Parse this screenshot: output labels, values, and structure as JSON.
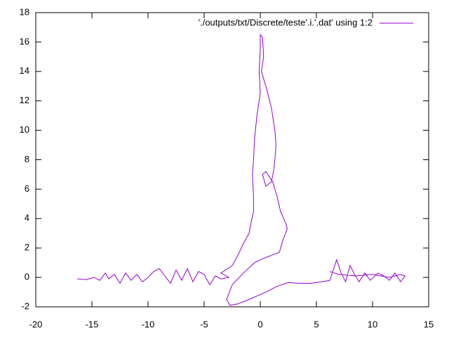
{
  "chart_data": {
    "type": "line",
    "x": [
      -16.3,
      -15.5,
      -14.8,
      -14.3,
      -13.8,
      -13.5,
      -13,
      -12.5,
      -12,
      -11.5,
      -11,
      -10.5,
      -10,
      -9.5,
      -9,
      -8.5,
      -8,
      -7.5,
      -7,
      -6.5,
      -6,
      -5.5,
      -5,
      -4.5,
      -4,
      -3.5,
      -2.8,
      -3.5,
      -2.5,
      -2,
      -1.5,
      -1,
      -0.8,
      -0.6,
      -0.6,
      -0.7,
      -0.6,
      -0.5,
      -0.3,
      0,
      -0.1,
      0,
      0,
      0.2,
      0.3,
      0.1,
      0.5,
      1,
      1.3,
      1.4,
      1.3,
      1.2,
      1,
      0.5,
      0.2,
      0.5,
      1.1,
      1.5,
      1.8,
      2.3,
      2.4,
      2,
      1.7,
      1,
      0.3,
      -0.5,
      -1.5,
      -2.5,
      -3,
      -2.7,
      -2,
      -1,
      0.5,
      1.5,
      2.5,
      3.5,
      4.5,
      5.5,
      6.2,
      6.5,
      6.8,
      7.2,
      7.6,
      8,
      8.4,
      8.8,
      9.3,
      9.8,
      10.5,
      11,
      11.5,
      12,
      12.5,
      12.9,
      12.5,
      11.5,
      10,
      8.5,
      7,
      6.2
    ],
    "series": [
      {
        "name": "'./outputs/txt/Discrete/teste'.i.'.dat' using 1:2",
        "color": "#9400d3",
        "values": [
          -0.1,
          -0.15,
          0,
          -0.2,
          0.3,
          -0.1,
          0.2,
          -0.4,
          0.3,
          -0.2,
          0.2,
          -0.3,
          0,
          0.4,
          0.6,
          0.1,
          -0.4,
          0.5,
          -0.2,
          0.6,
          -0.3,
          0.4,
          0.2,
          -0.5,
          0.1,
          -0.1,
          0,
          0.3,
          0.8,
          1.5,
          2.3,
          3,
          3.8,
          4.5,
          5.5,
          7,
          8,
          9.5,
          11,
          12.5,
          14,
          15.5,
          16.5,
          16.3,
          15,
          14,
          13,
          11.5,
          10,
          9,
          8,
          7.3,
          6.5,
          6.2,
          7,
          7.2,
          6.5,
          5.5,
          4.5,
          3.6,
          3.3,
          2.5,
          1.7,
          1.5,
          1.3,
          1,
          0.3,
          -0.5,
          -1.5,
          -1.9,
          -1.8,
          -1.5,
          -1,
          -0.6,
          -0.35,
          -0.4,
          -0.4,
          -0.3,
          -0.2,
          0.5,
          1.2,
          0.3,
          -0.3,
          0.8,
          0.2,
          -0.3,
          0.3,
          -0.2,
          0.3,
          0.1,
          -0.2,
          0.3,
          -0.3,
          0.1,
          0.2,
          0,
          0.2,
          0.1,
          0.2,
          0.4
        ]
      }
    ],
    "xlim": [
      -20,
      15
    ],
    "xticks": [
      -20,
      -15,
      -10,
      -5,
      0,
      5,
      10,
      15
    ],
    "ylim": [
      -2,
      18
    ],
    "yticks": [
      -2,
      0,
      2,
      4,
      6,
      8,
      10,
      12,
      14,
      16,
      18
    ],
    "legend": "top right"
  }
}
